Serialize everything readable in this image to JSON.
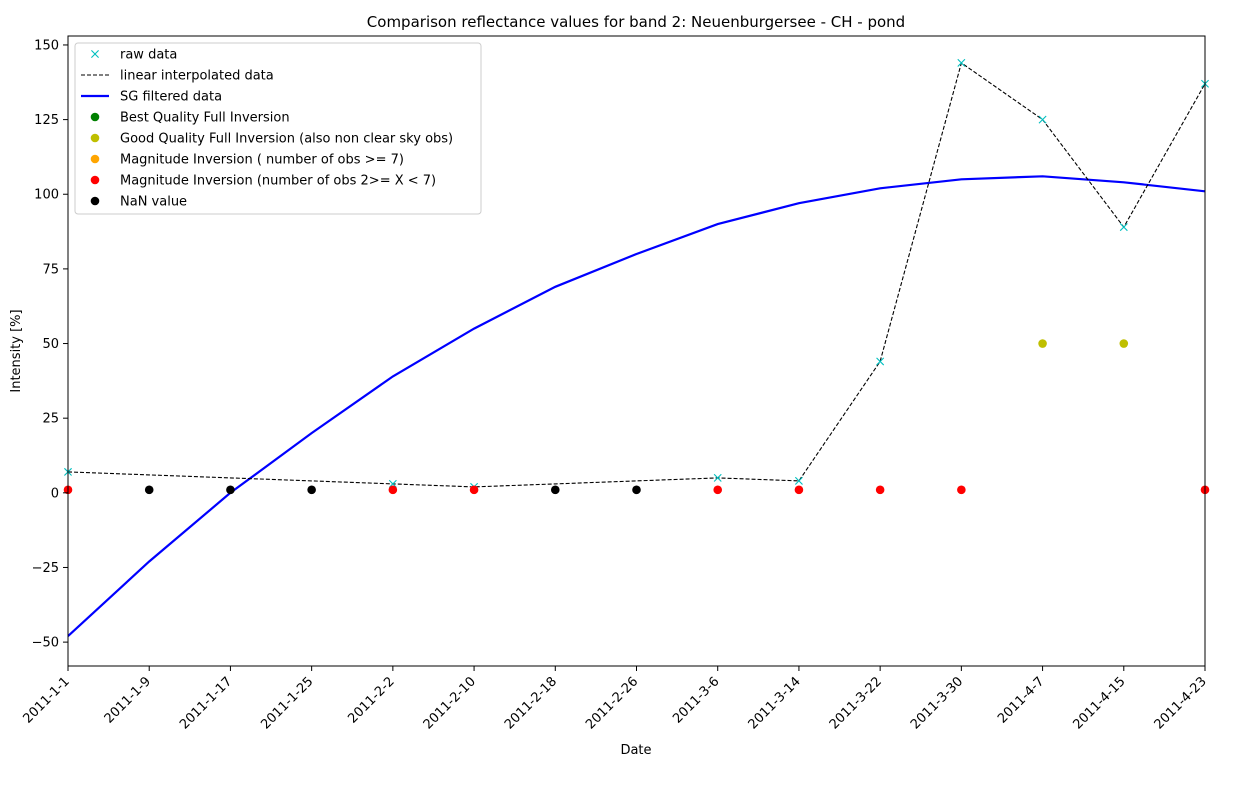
{
  "chart_data": {
    "type": "line",
    "title": "Comparison reflectance values for band 2: Neuenburgersee - CH - pond",
    "xlabel": "Date",
    "ylabel": "Intensity [%]",
    "x_ticks": [
      "2011-1-1",
      "2011-1-9",
      "2011-1-17",
      "2011-1-25",
      "2011-2-2",
      "2011-2-10",
      "2011-2-18",
      "2011-2-26",
      "2011-3-6",
      "2011-3-14",
      "2011-3-22",
      "2011-3-30",
      "2011-4-7",
      "2011-4-15",
      "2011-4-23"
    ],
    "y_ticks": [
      "−50",
      "−25",
      "0",
      "25",
      "50",
      "75",
      "100",
      "125",
      "150"
    ],
    "ylim": [
      -58,
      153
    ],
    "grid": false,
    "legend_position": "top-left",
    "legend": [
      {
        "label": "raw data",
        "marker": "x",
        "color": "#00bfbf"
      },
      {
        "label": "linear interpolated data",
        "marker": "dashed-line",
        "color": "#000000"
      },
      {
        "label": "SG filtered data",
        "marker": "line",
        "color": "#0000ff"
      },
      {
        "label": "Best Quality Full Inversion",
        "marker": "dot",
        "color": "#008000"
      },
      {
        "label": "Good Quality Full Inversion (also non clear sky obs)",
        "marker": "dot",
        "color": "#bfbf00"
      },
      {
        "label": "Magnitude Inversion ( number of obs >= 7)",
        "marker": "dot",
        "color": "#ffa500"
      },
      {
        "label": "Magnitude Inversion (number of obs 2>= X < 7)",
        "marker": "dot",
        "color": "#ff0000"
      },
      {
        "label": "NaN value",
        "marker": "dot",
        "color": "#000000"
      }
    ],
    "series": [
      {
        "name": "raw data",
        "x": [
          "2011-1-1",
          "2011-2-2",
          "2011-2-10",
          "2011-3-6",
          "2011-3-14",
          "2011-3-22",
          "2011-3-30",
          "2011-4-7",
          "2011-4-15",
          "2011-4-23"
        ],
        "values": [
          7,
          3,
          2,
          5,
          4,
          44,
          144,
          125,
          89,
          137
        ]
      },
      {
        "name": "linear interpolated data",
        "x": [
          "2011-1-1",
          "2011-1-9",
          "2011-1-17",
          "2011-1-25",
          "2011-2-2",
          "2011-2-10",
          "2011-2-18",
          "2011-2-26",
          "2011-3-6",
          "2011-3-14",
          "2011-3-22",
          "2011-3-30",
          "2011-4-7",
          "2011-4-15",
          "2011-4-23"
        ],
        "values": [
          7,
          6,
          5,
          4,
          3,
          2,
          3,
          4,
          5,
          4,
          44,
          144,
          125,
          89,
          137
        ]
      },
      {
        "name": "SG filtered data",
        "x": [
          "2011-1-1",
          "2011-1-9",
          "2011-1-17",
          "2011-1-25",
          "2011-2-2",
          "2011-2-10",
          "2011-2-18",
          "2011-2-26",
          "2011-3-6",
          "2011-3-14",
          "2011-3-22",
          "2011-3-30",
          "2011-4-7",
          "2011-4-15",
          "2011-4-23"
        ],
        "values": [
          -48,
          -23,
          0,
          20,
          39,
          55,
          69,
          80,
          90,
          97,
          102,
          105,
          106,
          104,
          101
        ]
      },
      {
        "name": "Good Quality Full Inversion (also non clear sky obs)",
        "x": [
          "2011-4-7",
          "2011-4-15"
        ],
        "values": [
          50,
          50
        ]
      },
      {
        "name": "Magnitude Inversion (number of obs 2>= X < 7)",
        "x": [
          "2011-1-1",
          "2011-2-2",
          "2011-2-10",
          "2011-3-6",
          "2011-3-14",
          "2011-3-22",
          "2011-3-30",
          "2011-4-23"
        ],
        "values": [
          1,
          1,
          1,
          1,
          1,
          1,
          1,
          1
        ]
      },
      {
        "name": "NaN value",
        "x": [
          "2011-1-9",
          "2011-1-17",
          "2011-1-25",
          "2011-2-18",
          "2011-2-26"
        ],
        "values": [
          1,
          1,
          1,
          1,
          1
        ]
      }
    ]
  }
}
